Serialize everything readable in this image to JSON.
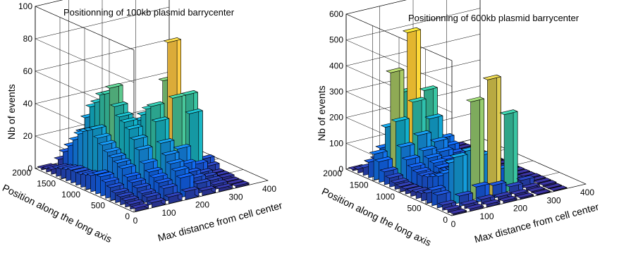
{
  "chart_data": [
    {
      "type": "bar3d",
      "title": "Positionning of 100kb plasmid barrycenter",
      "xlabel": "Max distance from cell center",
      "ylabel": "Position along the long axis",
      "zlabel": "Nb of events",
      "xlim": [
        0,
        400
      ],
      "ylim": [
        0,
        2000
      ],
      "zlim": [
        0,
        100
      ],
      "x_ticks": [
        0,
        100,
        200,
        300,
        400
      ],
      "y_ticks": [
        0,
        500,
        1000,
        1500,
        2000
      ],
      "z_ticks": [
        0,
        20,
        40,
        60,
        80,
        100
      ],
      "grid": true,
      "colormap": "parula",
      "x_centers": [
        25,
        75,
        125,
        175,
        225,
        275,
        325
      ],
      "y_centers": [
        50,
        150,
        250,
        350,
        450,
        550,
        650,
        750,
        850,
        950,
        1050,
        1150,
        1250,
        1350,
        1450,
        1550,
        1650,
        1750,
        1850,
        1950
      ],
      "values": [
        [
          2,
          3,
          4,
          5,
          3,
          2,
          1
        ],
        [
          3,
          5,
          8,
          12,
          6,
          3,
          1
        ],
        [
          4,
          6,
          10,
          15,
          8,
          4,
          1
        ],
        [
          5,
          8,
          12,
          18,
          10,
          5,
          2
        ],
        [
          6,
          10,
          14,
          22,
          14,
          6,
          2
        ],
        [
          8,
          12,
          18,
          28,
          22,
          10,
          2
        ],
        [
          10,
          16,
          25,
          40,
          52,
          40,
          5
        ],
        [
          12,
          18,
          30,
          48,
          85,
          50,
          8
        ],
        [
          12,
          20,
          35,
          45,
          60,
          30,
          5
        ],
        [
          10,
          22,
          38,
          40,
          30,
          15,
          3
        ],
        [
          9,
          25,
          40,
          35,
          20,
          10,
          2
        ],
        [
          8,
          28,
          45,
          30,
          15,
          8,
          2
        ],
        [
          8,
          32,
          55,
          25,
          12,
          6,
          2
        ],
        [
          8,
          30,
          50,
          22,
          10,
          5,
          1
        ],
        [
          7,
          28,
          48,
          20,
          8,
          4,
          1
        ],
        [
          6,
          25,
          42,
          18,
          6,
          3,
          1
        ],
        [
          5,
          20,
          38,
          15,
          5,
          2,
          1
        ],
        [
          3,
          15,
          30,
          12,
          4,
          2,
          1
        ],
        [
          2,
          10,
          20,
          8,
          3,
          1,
          0
        ],
        [
          1,
          4,
          8,
          4,
          2,
          1,
          0
        ]
      ]
    },
    {
      "type": "bar3d",
      "title": "Positionning of 600kb plasmid barrycenter",
      "xlabel": "Max distance from cell center",
      "ylabel": "Position along the long axis",
      "zlabel": "Nb of events",
      "xlim": [
        0,
        400
      ],
      "ylim": [
        0,
        2000
      ],
      "zlim": [
        0,
        600
      ],
      "x_ticks": [
        0,
        100,
        200,
        300,
        400
      ],
      "y_ticks": [
        0,
        500,
        1000,
        1500,
        2000
      ],
      "z_ticks": [
        0,
        100,
        200,
        300,
        400,
        500,
        600
      ],
      "grid": true,
      "colormap": "parula",
      "x_centers": [
        25,
        75,
        125,
        175,
        225,
        275,
        325
      ],
      "y_centers": [
        50,
        150,
        250,
        350,
        450,
        550,
        650,
        750,
        850,
        950,
        1050,
        1150,
        1250,
        1350,
        1450,
        1550,
        1650,
        1750,
        1850,
        1950
      ],
      "values": [
        [
          5,
          8,
          10,
          8,
          5,
          3,
          2
        ],
        [
          10,
          15,
          20,
          15,
          10,
          5,
          2
        ],
        [
          20,
          40,
          60,
          50,
          30,
          10,
          5
        ],
        [
          50,
          180,
          380,
          450,
          300,
          30,
          5
        ],
        [
          60,
          150,
          180,
          150,
          80,
          20,
          5
        ],
        [
          40,
          100,
          120,
          100,
          60,
          15,
          5
        ],
        [
          30,
          80,
          90,
          80,
          40,
          10,
          3
        ],
        [
          25,
          70,
          80,
          70,
          35,
          8,
          3
        ],
        [
          20,
          60,
          70,
          60,
          30,
          8,
          3
        ],
        [
          20,
          55,
          70,
          55,
          30,
          8,
          3
        ],
        [
          20,
          60,
          80,
          60,
          35,
          8,
          3
        ],
        [
          25,
          70,
          90,
          70,
          40,
          10,
          3
        ],
        [
          35,
          90,
          110,
          90,
          50,
          12,
          4
        ],
        [
          50,
          130,
          160,
          120,
          60,
          15,
          5
        ],
        [
          80,
          220,
          280,
          200,
          80,
          20,
          5
        ],
        [
          100,
          400,
          540,
          300,
          100,
          25,
          5
        ],
        [
          60,
          180,
          300,
          220,
          80,
          15,
          5
        ],
        [
          30,
          90,
          150,
          120,
          40,
          10,
          3
        ],
        [
          15,
          40,
          60,
          40,
          20,
          5,
          2
        ],
        [
          5,
          15,
          20,
          15,
          8,
          3,
          1
        ]
      ]
    }
  ]
}
